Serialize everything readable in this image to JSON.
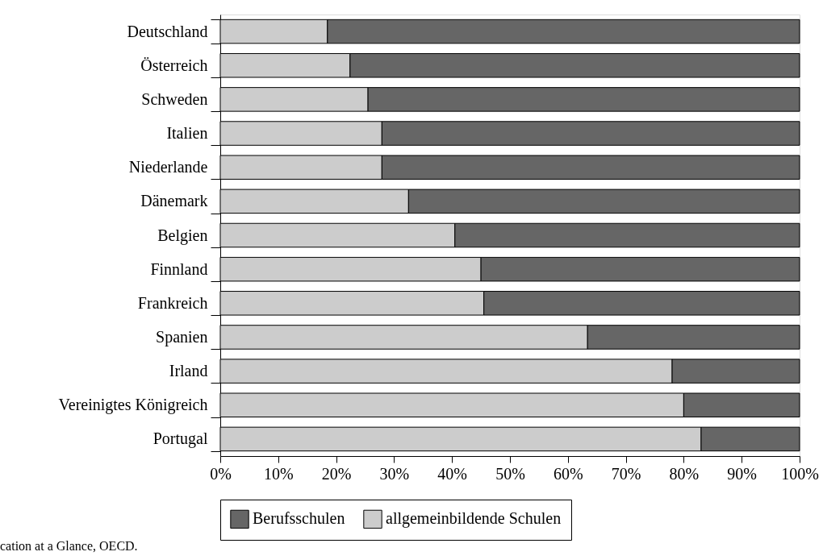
{
  "chart_data": {
    "type": "bar",
    "orientation": "horizontal",
    "stacked": true,
    "categories": [
      "Deutschland",
      "Österreich",
      "Schweden",
      "Italien",
      "Niederlande",
      "Dänemark",
      "Belgien",
      "Finnland",
      "Frankreich",
      "Spanien",
      "Irland",
      "Vereinigtes Königreich",
      "Portugal"
    ],
    "series": [
      {
        "name": "allgemeinbildende Schulen",
        "color": "#cccccc",
        "values": [
          18.5,
          22.4,
          25.5,
          27.9,
          27.9,
          32.5,
          40.5,
          45,
          45.5,
          63.4,
          78,
          80,
          83
        ]
      },
      {
        "name": "Berufsschulen",
        "color": "#666666",
        "values": [
          81.5,
          77.6,
          74.5,
          72.1,
          72.1,
          67.5,
          59.5,
          55,
          54.5,
          36.6,
          22,
          20,
          17
        ]
      }
    ],
    "xlim": [
      0,
      100
    ],
    "xticks": [
      {
        "value": 0,
        "label": "0%"
      },
      {
        "value": 10,
        "label": "10%"
      },
      {
        "value": 20,
        "label": "20%"
      },
      {
        "value": 30,
        "label": "30%"
      },
      {
        "value": 40,
        "label": "40%"
      },
      {
        "value": 50,
        "label": "50%"
      },
      {
        "value": 60,
        "label": "60%"
      },
      {
        "value": 70,
        "label": "70%"
      },
      {
        "value": 80,
        "label": "80%"
      },
      {
        "value": 90,
        "label": "90%"
      },
      {
        "value": 100,
        "label": "100%"
      }
    ],
    "legend": "bottom",
    "grid": false,
    "annotations": [
      "cation at a Glance, OECD."
    ]
  }
}
